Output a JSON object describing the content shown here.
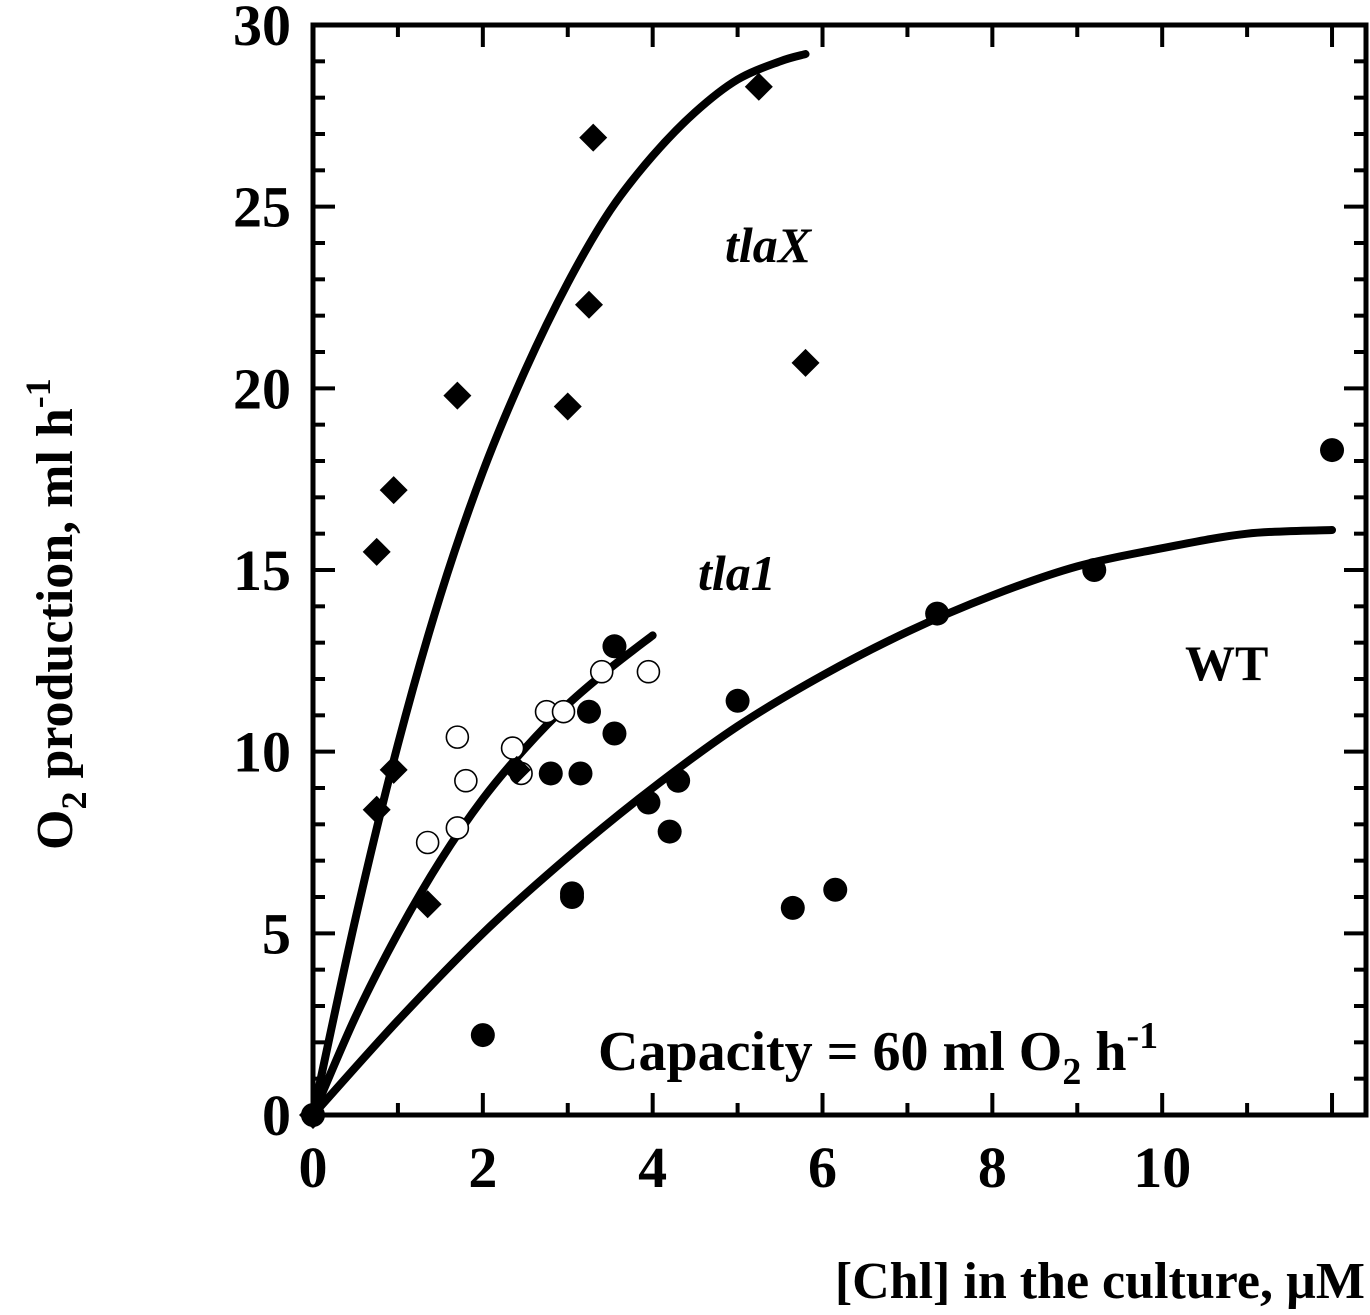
{
  "chart_data": {
    "type": "scatter",
    "xlabel": "[Chl] in the culture, µM",
    "ylabel_main": "O",
    "ylabel_sub": "2",
    "ylabel_rest": " production, ml h",
    "ylabel_sup": "-1",
    "xlim": [
      0,
      12.4
    ],
    "ylim": [
      0,
      30
    ],
    "x_ticks": [
      0,
      2,
      4,
      6,
      8,
      10
    ],
    "y_ticks": [
      0,
      5,
      10,
      15,
      20,
      25,
      30
    ],
    "grid": false,
    "annotation": {
      "main": "Capacity = 60 ml O",
      "sub": "2",
      "rest": " h",
      "sup": "-1"
    },
    "series": [
      {
        "name": "tlaX",
        "marker": "diamond",
        "points": [
          [
            0,
            0
          ],
          [
            0.75,
            8.4
          ],
          [
            0.95,
            9.5
          ],
          [
            1.35,
            5.8
          ],
          [
            0.75,
            15.5
          ],
          [
            0.95,
            17.2
          ],
          [
            1.7,
            19.8
          ],
          [
            2.4,
            9.5
          ],
          [
            3.0,
            19.5
          ],
          [
            3.25,
            22.3
          ],
          [
            3.3,
            26.9
          ],
          [
            5.25,
            28.3
          ],
          [
            5.8,
            20.7
          ]
        ],
        "fit": [
          [
            0,
            0
          ],
          [
            0.5,
            5.4
          ],
          [
            1.0,
            10.2
          ],
          [
            1.5,
            14.3
          ],
          [
            2.0,
            17.7
          ],
          [
            2.5,
            20.5
          ],
          [
            3.0,
            22.9
          ],
          [
            3.5,
            24.9
          ],
          [
            4.0,
            26.4
          ],
          [
            4.5,
            27.6
          ],
          [
            5.0,
            28.5
          ],
          [
            5.5,
            29.0
          ],
          [
            5.8,
            29.2
          ]
        ]
      },
      {
        "name": "tla1",
        "marker": "circle-open",
        "points": [
          [
            1.35,
            7.5
          ],
          [
            1.7,
            7.9
          ],
          [
            1.7,
            10.4
          ],
          [
            1.8,
            9.2
          ],
          [
            2.35,
            10.1
          ],
          [
            2.45,
            9.4
          ],
          [
            2.75,
            11.1
          ],
          [
            2.95,
            11.1
          ],
          [
            3.4,
            12.2
          ],
          [
            3.55,
            12.9
          ],
          [
            3.95,
            12.2
          ]
        ],
        "fit": [
          [
            0,
            0
          ],
          [
            0.5,
            2.7
          ],
          [
            1.0,
            5.0
          ],
          [
            1.5,
            7.0
          ],
          [
            2.0,
            8.7
          ],
          [
            2.5,
            10.1
          ],
          [
            3.0,
            11.3
          ],
          [
            3.5,
            12.3
          ],
          [
            4.0,
            13.2
          ]
        ]
      },
      {
        "name": "WT",
        "marker": "circle-filled",
        "points": [
          [
            0,
            0
          ],
          [
            2.0,
            2.2
          ],
          [
            2.8,
            9.4
          ],
          [
            3.05,
            6.1
          ],
          [
            3.05,
            6.0
          ],
          [
            3.15,
            9.4
          ],
          [
            3.25,
            11.1
          ],
          [
            3.55,
            10.5
          ],
          [
            3.55,
            12.9
          ],
          [
            3.95,
            8.6
          ],
          [
            4.2,
            7.8
          ],
          [
            4.3,
            9.2
          ],
          [
            5.0,
            11.4
          ],
          [
            5.65,
            5.7
          ],
          [
            6.15,
            6.2
          ],
          [
            7.35,
            13.8
          ],
          [
            9.2,
            15.0
          ],
          [
            12.0,
            18.3
          ]
        ],
        "fit": [
          [
            0,
            0
          ],
          [
            1.0,
            2.6
          ],
          [
            2.0,
            5.0
          ],
          [
            3.0,
            7.1
          ],
          [
            4.0,
            9.0
          ],
          [
            5.0,
            10.7
          ],
          [
            6.0,
            12.1
          ],
          [
            7.0,
            13.3
          ],
          [
            8.0,
            14.3
          ],
          [
            9.0,
            15.1
          ],
          [
            10.0,
            15.6
          ],
          [
            11.0,
            16.0
          ],
          [
            12.0,
            16.1
          ]
        ]
      }
    ]
  }
}
